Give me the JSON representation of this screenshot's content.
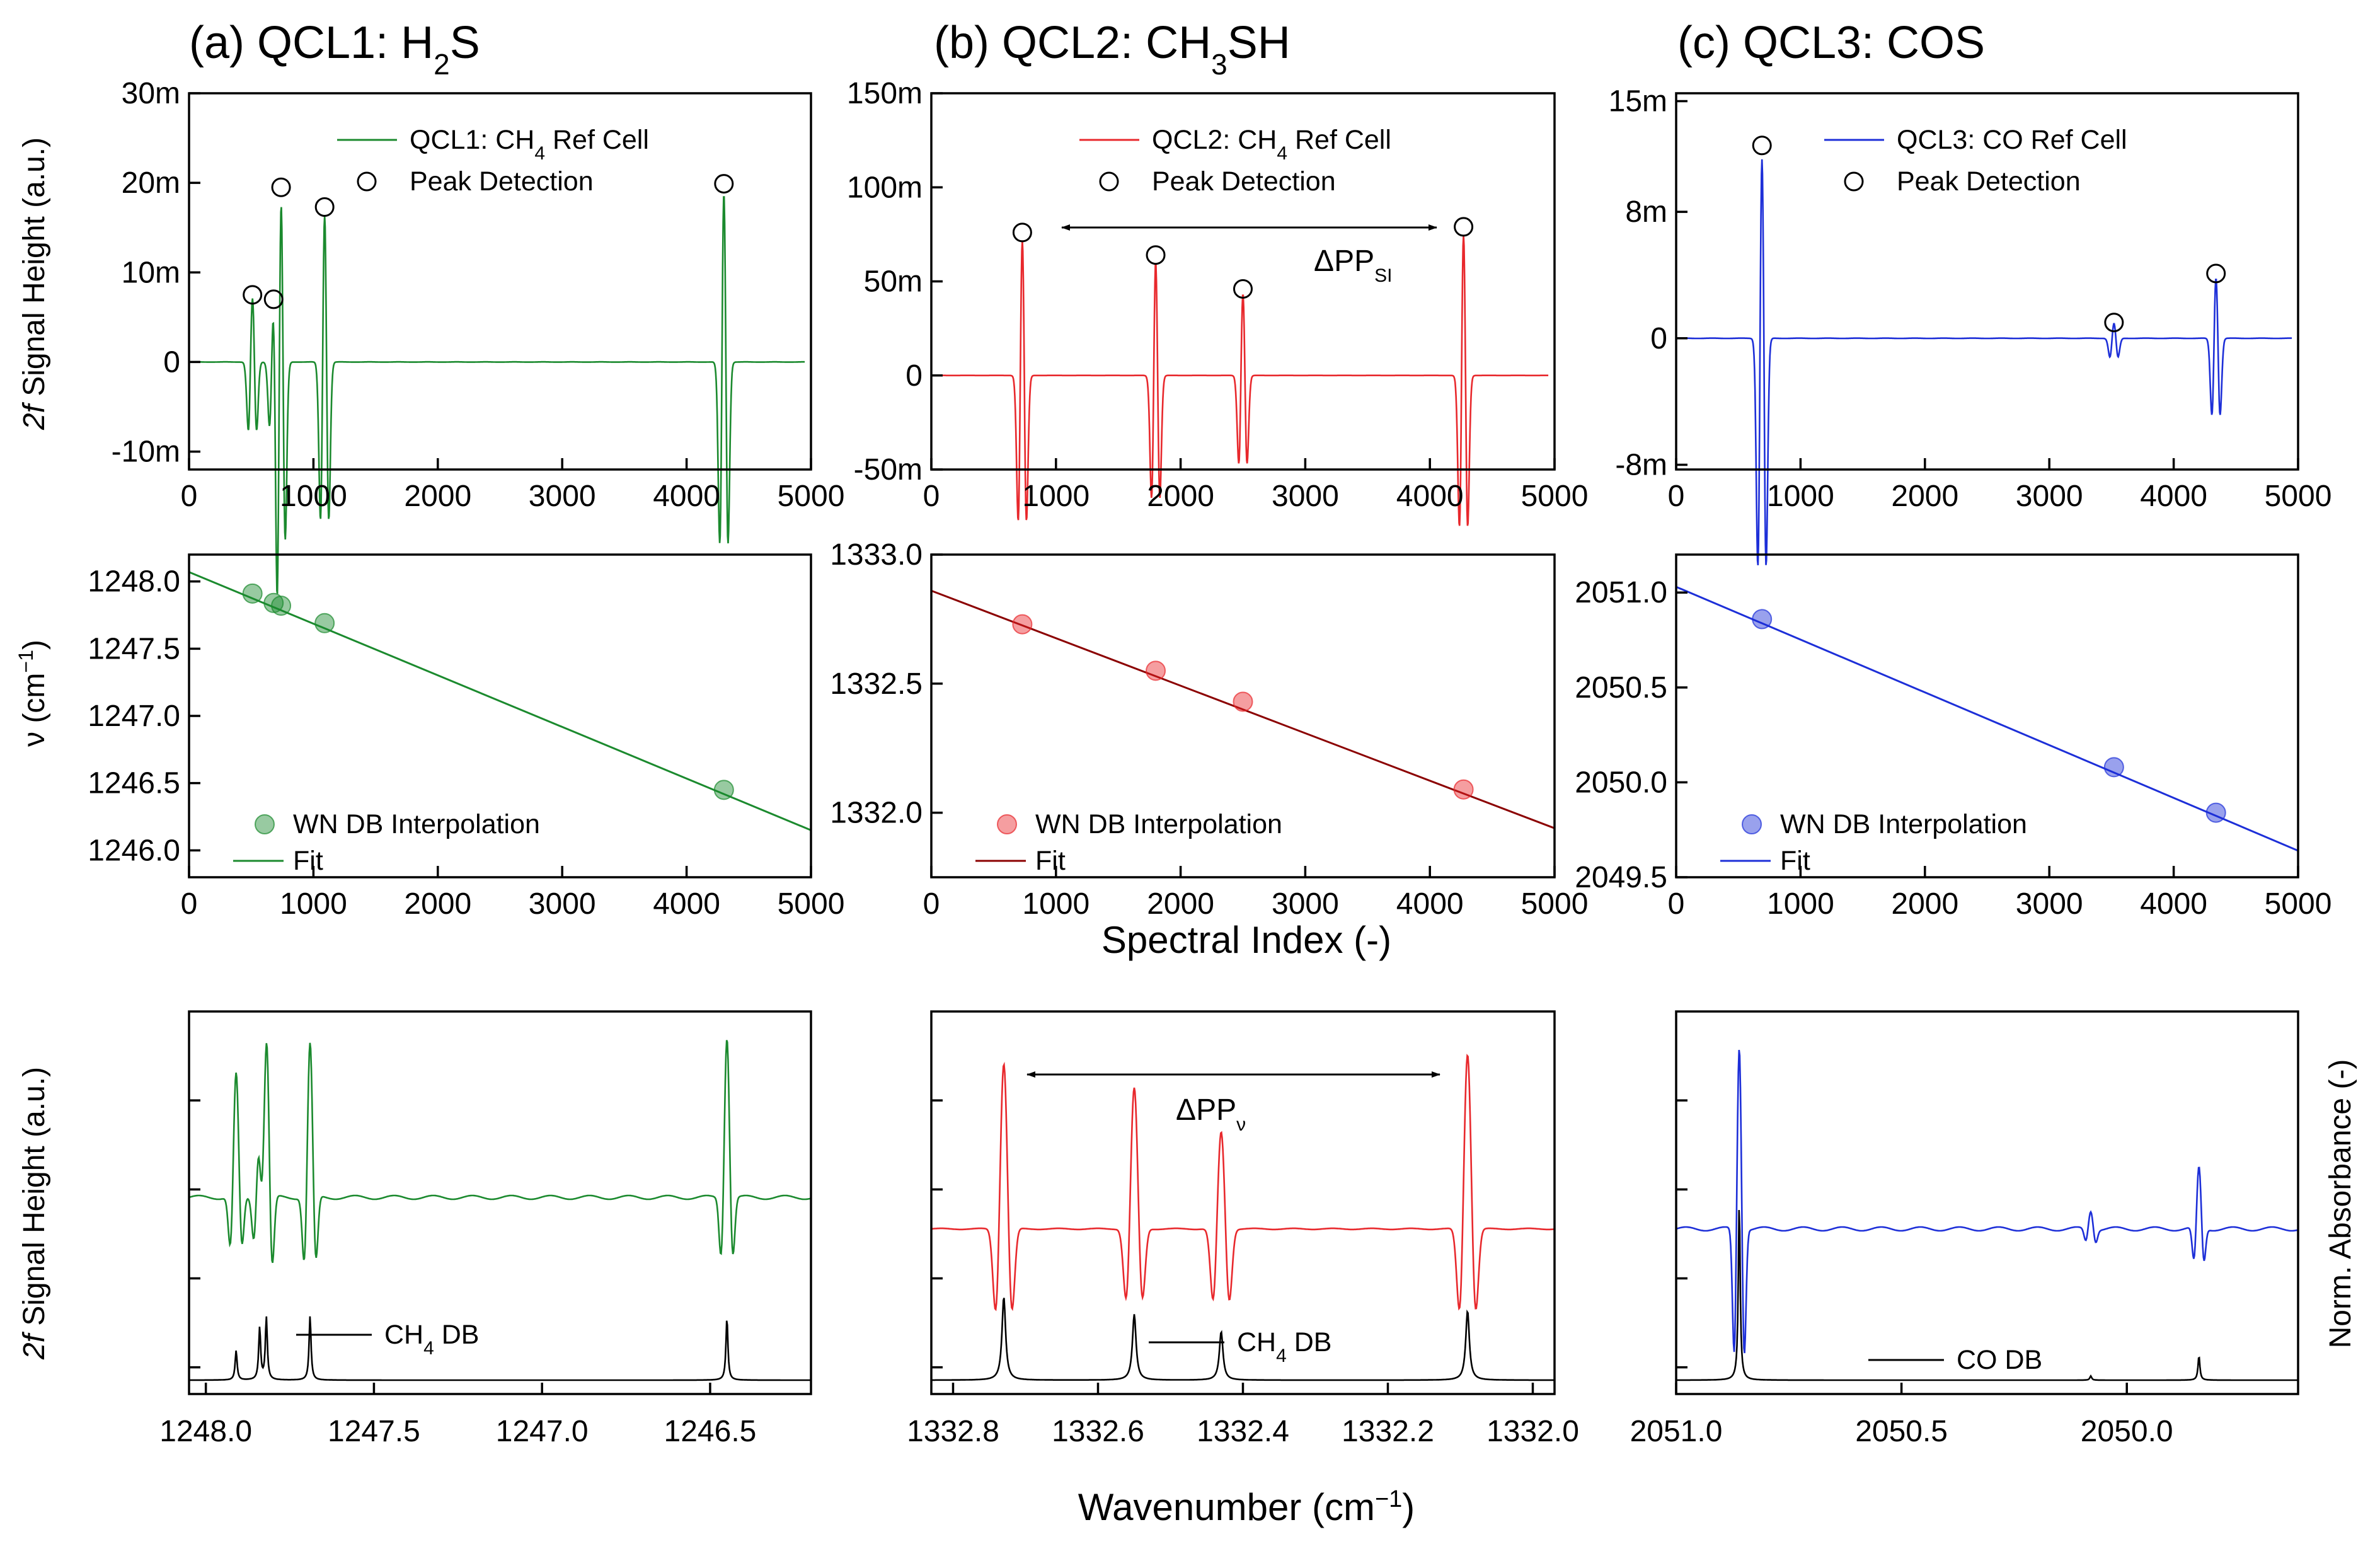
{
  "panels": [
    {
      "title_prefix": "(a) QCL1: H",
      "title_sub": "2",
      "title_suffix": "S",
      "color": "#1b8a2e"
    },
    {
      "title_prefix": "(b) QCL2: CH",
      "title_sub": "3",
      "title_suffix": "SH",
      "color": "#e8282c"
    },
    {
      "title_prefix": "(c) QCL3: COS",
      "title_sub": "",
      "title_suffix": "",
      "color": "#1d2fd8"
    }
  ],
  "labels": {
    "top_ylabel_italic": "2f",
    "top_ylabel_rest": " Signal Height (a.u.)",
    "mid_ylabel_main": "ν (cm",
    "mid_ylabel_sup": "−1",
    "mid_ylabel_end": ")",
    "bot_ylabel_italic": "2f",
    "bot_ylabel_rest": " Signal Height (a.u.)",
    "bot_ylabel_right": "Norm. Absorbance (-)",
    "spectral_index_label": "Spectral Index (-)",
    "wavenumber_label_main": "Wavenumber (cm",
    "wavenumber_label_sup": "−1",
    "wavenumber_label_end": ")",
    "dpp_si_main": "ΔPP",
    "dpp_si_sub": "SI",
    "dpp_nu_main": "ΔPP",
    "dpp_nu_sub": "ν"
  },
  "legends": {
    "top": [
      {
        "pre": "QCL1: CH",
        "sub": "4",
        "post": "  Ref Cell",
        "peak": "Peak Detection"
      },
      {
        "pre": "QCL2: CH",
        "sub": "4",
        "post": "  Ref Cell",
        "peak": "Peak Detection"
      },
      {
        "pre": "QCL3: CO Ref Cell",
        "sub": "",
        "post": "",
        "peak": "Peak Detection"
      }
    ],
    "mid": [
      {
        "points": "WN DB Interpolation",
        "fit": "Fit"
      },
      {
        "points": "WN DB Interpolation",
        "fit": "Fit"
      },
      {
        "points": "WN DB Interpolation",
        "fit": "Fit"
      }
    ],
    "bot": [
      {
        "pre": "CH",
        "sub": "4",
        "post": "  DB"
      },
      {
        "pre": "CH",
        "sub": "4",
        "post": "  DB"
      },
      {
        "pre": "CO DB",
        "sub": "",
        "post": ""
      }
    ]
  },
  "chart_data": [
    {
      "type": "line",
      "panel": "a-top",
      "series": [
        {
          "name": "QCL1: CH4 Ref Cell",
          "color": "#1b8a2e"
        }
      ],
      "peak_detection": {
        "x": [
          510,
          680,
          740,
          1090,
          4300
        ],
        "y": [
          0.0075,
          0.007,
          0.0195,
          0.0173,
          0.0199
        ]
      },
      "xlim": [
        0,
        5000
      ],
      "ylim": [
        -0.012,
        0.03
      ],
      "xticks": [
        "0",
        "1000",
        "2000",
        "3000",
        "4000",
        "5000"
      ],
      "yticks": [
        {
          "v": 0.03,
          "t": "30m"
        },
        {
          "v": 0.02,
          "t": "20m"
        },
        {
          "v": 0.01,
          "t": "10m"
        },
        {
          "v": 0.0,
          "t": "0"
        },
        {
          "v": -0.01,
          "t": "-10m"
        }
      ]
    },
    {
      "type": "line",
      "panel": "b-top",
      "series": [
        {
          "name": "QCL2: CH4 Ref Cell",
          "color": "#e8282c"
        }
      ],
      "peak_detection": {
        "x": [
          730,
          1800,
          2500,
          4270
        ],
        "y": [
          0.076,
          0.064,
          0.046,
          0.079
        ]
      },
      "xlim": [
        0,
        5000
      ],
      "ylim": [
        -0.05,
        0.15
      ],
      "xticks": [
        "0",
        "1000",
        "2000",
        "3000",
        "4000",
        "5000"
      ],
      "yticks": [
        {
          "v": 0.15,
          "t": "150m"
        },
        {
          "v": 0.1,
          "t": "100m"
        },
        {
          "v": 0.05,
          "t": "50m"
        },
        {
          "v": 0.0,
          "t": "0"
        },
        {
          "v": -0.05,
          "t": "-50m"
        }
      ]
    },
    {
      "type": "line",
      "panel": "c-top",
      "series": [
        {
          "name": "QCL3: CO Ref Cell",
          "color": "#1d2fd8"
        }
      ],
      "peak_detection": {
        "x": [
          690,
          3520,
          4340
        ],
        "y": [
          0.0122,
          0.001,
          0.0041
        ]
      },
      "xlim": [
        0,
        5000
      ],
      "ylim": [
        -0.0083,
        0.0155
      ],
      "xticks": [
        "0",
        "1000",
        "2000",
        "3000",
        "4000",
        "5000"
      ],
      "yticks": [
        {
          "v": 0.015,
          "t": "15m"
        },
        {
          "v": 0.008,
          "t": "8m"
        },
        {
          "v": 0.0,
          "t": "0"
        },
        {
          "v": -0.008,
          "t": "-8m"
        }
      ]
    },
    {
      "type": "scatter",
      "panel": "a-mid",
      "points": {
        "x": [
          510,
          680,
          740,
          1090,
          4300
        ],
        "y": [
          1247.91,
          1247.84,
          1247.82,
          1247.69,
          1246.45
        ]
      },
      "fit": {
        "x": [
          0,
          5000
        ],
        "y": [
          1248.07,
          1246.15
        ]
      },
      "xlim": [
        0,
        5000
      ],
      "ylim": [
        1245.8,
        1248.2
      ],
      "xticks": [
        "0",
        "1000",
        "2000",
        "3000",
        "4000",
        "5000"
      ],
      "yticks": [
        {
          "v": 1248.0,
          "t": "1248.0"
        },
        {
          "v": 1247.5,
          "t": "1247.5"
        },
        {
          "v": 1247.0,
          "t": "1247.0"
        },
        {
          "v": 1246.5,
          "t": "1246.5"
        },
        {
          "v": 1246.0,
          "t": "1246.0"
        }
      ]
    },
    {
      "type": "scatter",
      "panel": "b-mid",
      "points": {
        "x": [
          730,
          1800,
          2500,
          4270
        ],
        "y": [
          1332.73,
          1332.55,
          1332.43,
          1332.09
        ]
      },
      "fit": {
        "x": [
          0,
          5000
        ],
        "y": [
          1332.86,
          1331.94
        ]
      },
      "xlim": [
        0,
        5000
      ],
      "ylim": [
        1331.75,
        1333.0
      ],
      "xticks": [
        "0",
        "1000",
        "2000",
        "3000",
        "4000",
        "5000"
      ],
      "yticks": [
        {
          "v": 1333.0,
          "t": "1333.0"
        },
        {
          "v": 1332.5,
          "t": "1332.5"
        },
        {
          "v": 1332.0,
          "t": "1332.0"
        }
      ]
    },
    {
      "type": "scatter",
      "panel": "c-mid",
      "points": {
        "x": [
          690,
          3520,
          4340
        ],
        "y": [
          2050.86,
          2050.08,
          2049.84
        ]
      },
      "fit": {
        "x": [
          0,
          5000
        ],
        "y": [
          2051.03,
          2049.64
        ]
      },
      "xlim": [
        0,
        5000
      ],
      "ylim": [
        2049.5,
        2051.2
      ],
      "xticks": [
        "0",
        "1000",
        "2000",
        "3000",
        "4000",
        "5000"
      ],
      "yticks": [
        {
          "v": 2051.0,
          "t": "2051.0"
        },
        {
          "v": 2050.5,
          "t": "2050.5"
        },
        {
          "v": 2050.0,
          "t": "2050.0"
        },
        {
          "v": 2049.5,
          "t": "2049.5"
        }
      ]
    },
    {
      "type": "line",
      "panel": "a-bot",
      "series": [
        {
          "name": "CH4 DB",
          "color": "#000000"
        }
      ],
      "peaks": [
        1247.91,
        1247.84,
        1247.82,
        1247.69,
        1246.45
      ],
      "xlim": [
        1248.05,
        1246.2
      ],
      "xticks": [
        "1248.0",
        "1247.5",
        "1247.0",
        "1246.5"
      ]
    },
    {
      "type": "line",
      "panel": "b-bot",
      "series": [
        {
          "name": "CH4 DB",
          "color": "#000000"
        }
      ],
      "peaks": [
        1332.73,
        1332.55,
        1332.43,
        1332.09
      ],
      "xlim": [
        1332.83,
        1331.97
      ],
      "xticks": [
        "1332.8",
        "1332.6",
        "1332.4",
        "1332.2",
        "1332.0"
      ]
    },
    {
      "type": "line",
      "panel": "c-bot",
      "series": [
        {
          "name": "CO DB",
          "color": "#000000"
        }
      ],
      "peaks": [
        2050.86,
        2050.08,
        2049.84
      ],
      "xlim": [
        2051.0,
        2049.62
      ],
      "xticks": [
        "2051.0",
        "2050.5",
        "2050.0"
      ]
    }
  ]
}
